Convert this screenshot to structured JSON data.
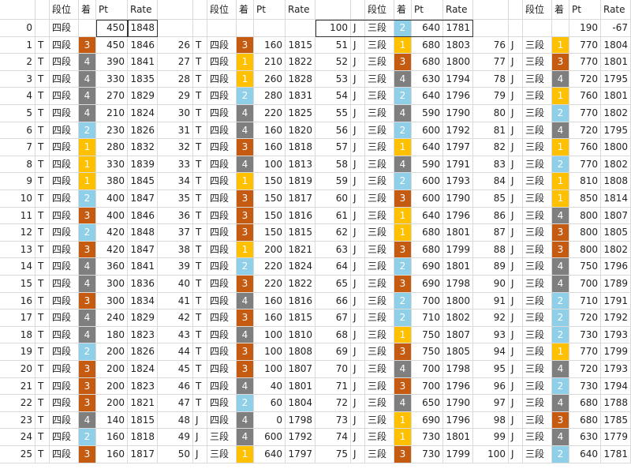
{
  "headers": [
    "段位",
    "着",
    "Pt",
    "Rate"
  ],
  "rank_colors": {
    "1": "#ffc000",
    "2": "#8fd0e8",
    "3": "#c55a11",
    "4": "#7f7f7f"
  },
  "blocks": [
    {
      "top": [
        0,
        null,
        "四段",
        null,
        450,
        1848
      ],
      "rows": [
        [
          1,
          "T",
          "四段",
          3,
          450,
          1846
        ],
        [
          2,
          "T",
          "四段",
          4,
          390,
          1841
        ],
        [
          3,
          "T",
          "四段",
          4,
          330,
          1835
        ],
        [
          4,
          "T",
          "四段",
          4,
          270,
          1829
        ],
        [
          5,
          "T",
          "四段",
          4,
          210,
          1824
        ],
        [
          6,
          "T",
          "四段",
          2,
          230,
          1826
        ],
        [
          7,
          "T",
          "四段",
          1,
          280,
          1832
        ],
        [
          8,
          "T",
          "四段",
          1,
          330,
          1839
        ],
        [
          9,
          "T",
          "四段",
          1,
          380,
          1845
        ],
        [
          10,
          "T",
          "四段",
          2,
          400,
          1847
        ],
        [
          11,
          "T",
          "四段",
          3,
          400,
          1846
        ],
        [
          12,
          "T",
          "四段",
          2,
          420,
          1848
        ],
        [
          13,
          "T",
          "四段",
          3,
          420,
          1847
        ],
        [
          14,
          "T",
          "四段",
          4,
          360,
          1841
        ],
        [
          15,
          "T",
          "四段",
          4,
          300,
          1836
        ],
        [
          16,
          "T",
          "四段",
          3,
          300,
          1834
        ],
        [
          17,
          "T",
          "四段",
          4,
          240,
          1829
        ],
        [
          18,
          "T",
          "四段",
          4,
          180,
          1823
        ],
        [
          19,
          "T",
          "四段",
          2,
          200,
          1826
        ],
        [
          20,
          "T",
          "四段",
          3,
          200,
          1824
        ],
        [
          21,
          "T",
          "四段",
          3,
          200,
          1823
        ],
        [
          22,
          "T",
          "四段",
          3,
          200,
          1821
        ],
        [
          23,
          "T",
          "四段",
          4,
          140,
          1815
        ],
        [
          24,
          "T",
          "四段",
          2,
          160,
          1818
        ],
        [
          25,
          "T",
          "四段",
          3,
          160,
          1817
        ]
      ]
    },
    {
      "rows": [
        [
          26,
          "T",
          "四段",
          3,
          160,
          1815
        ],
        [
          27,
          "T",
          "四段",
          1,
          210,
          1822
        ],
        [
          28,
          "T",
          "四段",
          1,
          260,
          1828
        ],
        [
          29,
          "T",
          "四段",
          2,
          280,
          1831
        ],
        [
          30,
          "T",
          "四段",
          4,
          220,
          1825
        ],
        [
          31,
          "T",
          "四段",
          4,
          160,
          1820
        ],
        [
          32,
          "T",
          "四段",
          3,
          160,
          1818
        ],
        [
          33,
          "T",
          "四段",
          4,
          100,
          1813
        ],
        [
          34,
          "T",
          "四段",
          1,
          150,
          1819
        ],
        [
          35,
          "T",
          "四段",
          3,
          150,
          1817
        ],
        [
          36,
          "T",
          "四段",
          3,
          150,
          1816
        ],
        [
          37,
          "T",
          "四段",
          3,
          150,
          1815
        ],
        [
          38,
          "T",
          "四段",
          1,
          200,
          1821
        ],
        [
          39,
          "T",
          "四段",
          2,
          220,
          1824
        ],
        [
          40,
          "T",
          "四段",
          3,
          220,
          1822
        ],
        [
          41,
          "T",
          "四段",
          4,
          160,
          1816
        ],
        [
          42,
          "T",
          "四段",
          3,
          160,
          1815
        ],
        [
          43,
          "T",
          "四段",
          4,
          100,
          1810
        ],
        [
          44,
          "T",
          "四段",
          3,
          100,
          1808
        ],
        [
          45,
          "T",
          "四段",
          3,
          100,
          1807
        ],
        [
          46,
          "T",
          "四段",
          4,
          40,
          1801
        ],
        [
          47,
          "T",
          "四段",
          2,
          60,
          1804
        ],
        [
          48,
          "J",
          "四段",
          4,
          0,
          1798
        ],
        [
          49,
          "J",
          "三段",
          4,
          600,
          1792
        ],
        [
          50,
          "J",
          "三段",
          1,
          640,
          1797
        ]
      ]
    },
    {
      "top": [
        100,
        "J",
        "三段",
        2,
        640,
        1781
      ],
      "rows": [
        [
          51,
          "J",
          "三段",
          1,
          680,
          1803
        ],
        [
          52,
          "J",
          "三段",
          3,
          680,
          1800
        ],
        [
          53,
          "J",
          "三段",
          4,
          630,
          1794
        ],
        [
          54,
          "J",
          "三段",
          2,
          640,
          1796
        ],
        [
          55,
          "J",
          "三段",
          4,
          590,
          1790
        ],
        [
          56,
          "J",
          "三段",
          2,
          600,
          1792
        ],
        [
          57,
          "J",
          "三段",
          1,
          640,
          1797
        ],
        [
          58,
          "J",
          "三段",
          4,
          590,
          1791
        ],
        [
          59,
          "J",
          "三段",
          2,
          600,
          1793
        ],
        [
          60,
          "J",
          "三段",
          3,
          600,
          1790
        ],
        [
          61,
          "J",
          "三段",
          1,
          640,
          1796
        ],
        [
          62,
          "J",
          "三段",
          1,
          680,
          1801
        ],
        [
          63,
          "J",
          "三段",
          3,
          680,
          1799
        ],
        [
          64,
          "J",
          "三段",
          2,
          690,
          1801
        ],
        [
          65,
          "J",
          "三段",
          3,
          690,
          1798
        ],
        [
          66,
          "J",
          "三段",
          2,
          700,
          1800
        ],
        [
          67,
          "J",
          "三段",
          2,
          710,
          1802
        ],
        [
          68,
          "J",
          "三段",
          1,
          750,
          1807
        ],
        [
          69,
          "J",
          "三段",
          3,
          750,
          1805
        ],
        [
          70,
          "J",
          "三段",
          4,
          700,
          1798
        ],
        [
          71,
          "J",
          "三段",
          3,
          700,
          1796
        ],
        [
          72,
          "J",
          "三段",
          4,
          650,
          1790
        ],
        [
          73,
          "J",
          "三段",
          1,
          690,
          1796
        ],
        [
          74,
          "J",
          "三段",
          1,
          730,
          1801
        ],
        [
          75,
          "J",
          "三段",
          3,
          730,
          1799
        ]
      ]
    },
    {
      "top": [
        null,
        null,
        null,
        null,
        190,
        -67
      ],
      "rows": [
        [
          76,
          "J",
          "三段",
          1,
          770,
          1804
        ],
        [
          77,
          "J",
          "三段",
          3,
          770,
          1801
        ],
        [
          78,
          "J",
          "三段",
          4,
          720,
          1795
        ],
        [
          79,
          "J",
          "三段",
          1,
          760,
          1801
        ],
        [
          80,
          "J",
          "三段",
          2,
          770,
          1802
        ],
        [
          81,
          "J",
          "三段",
          4,
          720,
          1795
        ],
        [
          82,
          "J",
          "三段",
          1,
          760,
          1800
        ],
        [
          83,
          "J",
          "三段",
          2,
          770,
          1802
        ],
        [
          84,
          "J",
          "三段",
          1,
          810,
          1808
        ],
        [
          85,
          "J",
          "三段",
          1,
          850,
          1814
        ],
        [
          86,
          "J",
          "三段",
          4,
          800,
          1807
        ],
        [
          87,
          "J",
          "三段",
          3,
          800,
          1805
        ],
        [
          88,
          "J",
          "三段",
          3,
          800,
          1802
        ],
        [
          89,
          "J",
          "三段",
          4,
          750,
          1796
        ],
        [
          90,
          "J",
          "三段",
          4,
          700,
          1789
        ],
        [
          91,
          "J",
          "三段",
          2,
          710,
          1791
        ],
        [
          92,
          "J",
          "三段",
          2,
          720,
          1792
        ],
        [
          93,
          "J",
          "三段",
          2,
          730,
          1793
        ],
        [
          94,
          "J",
          "三段",
          1,
          770,
          1799
        ],
        [
          95,
          "J",
          "三段",
          4,
          720,
          1793
        ],
        [
          96,
          "J",
          "三段",
          2,
          730,
          1794
        ],
        [
          97,
          "J",
          "三段",
          4,
          680,
          1788
        ],
        [
          98,
          "J",
          "三段",
          3,
          680,
          1785
        ],
        [
          99,
          "J",
          "三段",
          4,
          630,
          1779
        ],
        [
          100,
          "J",
          "三段",
          2,
          640,
          1781
        ]
      ]
    }
  ]
}
